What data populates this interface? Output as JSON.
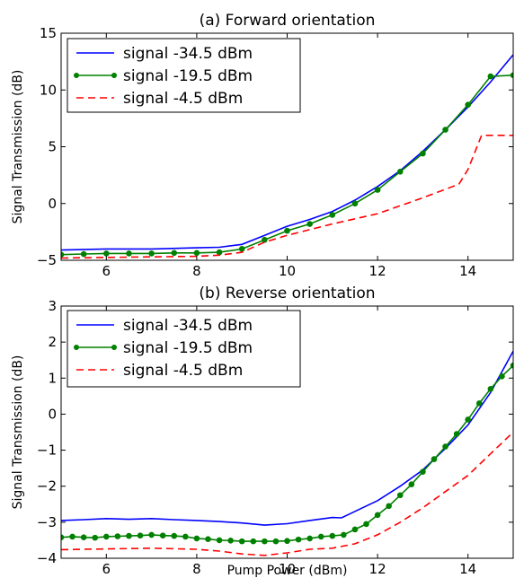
{
  "chart_data": [
    {
      "type": "line",
      "title": "(a) Forward orientation",
      "xlabel": "",
      "ylabel": "Signal Transmission (dB)",
      "xlim": [
        5,
        15
      ],
      "ylim": [
        -5,
        15
      ],
      "xticks": [
        6,
        8,
        10,
        12,
        14
      ],
      "yticks": [
        -5,
        0,
        5,
        10,
        15
      ],
      "legend_placement": "top-left",
      "series": [
        {
          "name": "signal -34.5 dBm",
          "color": "#0000ff",
          "style": "solid",
          "marker": "none",
          "x": [
            5.0,
            6.0,
            7.0,
            8.0,
            8.5,
            9.0,
            9.5,
            10.0,
            10.5,
            11.0,
            11.5,
            12.0,
            12.5,
            13.0,
            13.5,
            14.0,
            14.5,
            15.0
          ],
          "y": [
            -4.1,
            -4.0,
            -4.0,
            -3.9,
            -3.85,
            -3.6,
            -2.8,
            -2.0,
            -1.4,
            -0.7,
            0.3,
            1.5,
            2.9,
            4.6,
            6.5,
            8.5,
            10.7,
            13.1
          ]
        },
        {
          "name": "signal -19.5 dBm",
          "color": "#008000",
          "style": "solid",
          "marker": "circle",
          "x": [
            5.0,
            5.5,
            6.0,
            6.5,
            7.0,
            7.5,
            8.0,
            8.5,
            9.0,
            9.5,
            10.0,
            10.5,
            11.0,
            11.5,
            12.0,
            12.5,
            13.0,
            13.5,
            14.0,
            14.5,
            15.0
          ],
          "y": [
            -4.5,
            -4.45,
            -4.4,
            -4.4,
            -4.4,
            -4.35,
            -4.35,
            -4.3,
            -4.0,
            -3.2,
            -2.4,
            -1.8,
            -1.0,
            0.0,
            1.2,
            2.8,
            4.4,
            6.5,
            8.7,
            11.2,
            11.3
          ]
        },
        {
          "name": "signal -4.5 dBm",
          "color": "#ff0000",
          "style": "dashed",
          "marker": "none",
          "x": [
            5.0,
            6.0,
            7.0,
            8.0,
            8.5,
            9.0,
            9.5,
            10.0,
            11.0,
            12.0,
            13.0,
            13.8,
            14.0,
            14.3,
            15.0
          ],
          "y": [
            -4.8,
            -4.75,
            -4.7,
            -4.65,
            -4.55,
            -4.3,
            -3.4,
            -2.8,
            -1.8,
            -0.9,
            0.5,
            1.7,
            3.0,
            6.0,
            6.0
          ]
        }
      ]
    },
    {
      "type": "line",
      "title": "(b) Reverse orientation",
      "xlabel": "Pump Power (dBm)",
      "ylabel": "Signal Transmission (dB)",
      "xlim": [
        5,
        15
      ],
      "ylim": [
        -4,
        3
      ],
      "xticks": [
        6,
        8,
        10,
        12,
        14
      ],
      "yticks": [
        -4,
        -3,
        -2,
        -1,
        0,
        1,
        2,
        3
      ],
      "legend_placement": "top-left",
      "series": [
        {
          "name": "signal -34.5 dBm",
          "color": "#0000ff",
          "style": "solid",
          "marker": "none",
          "x": [
            5.0,
            5.5,
            6.0,
            6.5,
            7.0,
            7.5,
            8.0,
            8.5,
            9.0,
            9.5,
            10.0,
            10.5,
            11.0,
            11.2,
            11.5,
            12.0,
            12.5,
            13.0,
            13.5,
            14.0,
            14.5,
            15.0
          ],
          "y": [
            -2.95,
            -2.93,
            -2.9,
            -2.92,
            -2.9,
            -2.93,
            -2.95,
            -2.98,
            -3.02,
            -3.08,
            -3.04,
            -2.95,
            -2.87,
            -2.88,
            -2.7,
            -2.4,
            -2.0,
            -1.55,
            -0.95,
            -0.3,
            0.6,
            1.75
          ]
        },
        {
          "name": "signal -19.5 dBm",
          "color": "#008000",
          "style": "solid",
          "marker": "circle",
          "x": [
            5.0,
            5.25,
            5.5,
            5.75,
            6.0,
            6.25,
            6.5,
            6.75,
            7.0,
            7.25,
            7.5,
            7.75,
            8.0,
            8.25,
            8.5,
            8.75,
            9.0,
            9.25,
            9.5,
            9.75,
            10.0,
            10.25,
            10.5,
            10.75,
            11.0,
            11.25,
            11.5,
            11.75,
            12.0,
            12.25,
            12.5,
            12.75,
            13.0,
            13.25,
            13.5,
            13.75,
            14.0,
            14.25,
            14.5,
            14.75,
            15.0
          ],
          "y": [
            -3.42,
            -3.4,
            -3.42,
            -3.43,
            -3.4,
            -3.39,
            -3.38,
            -3.37,
            -3.35,
            -3.37,
            -3.38,
            -3.4,
            -3.45,
            -3.47,
            -3.5,
            -3.51,
            -3.53,
            -3.53,
            -3.53,
            -3.53,
            -3.52,
            -3.48,
            -3.45,
            -3.4,
            -3.38,
            -3.35,
            -3.2,
            -3.05,
            -2.8,
            -2.55,
            -2.25,
            -1.95,
            -1.6,
            -1.25,
            -0.9,
            -0.55,
            -0.15,
            0.3,
            0.7,
            1.05,
            1.35
          ]
        },
        {
          "name": "signal -4.5 dBm",
          "color": "#ff0000",
          "style": "dashed",
          "marker": "none",
          "x": [
            5.0,
            6.0,
            7.0,
            8.0,
            8.5,
            9.0,
            9.5,
            10.0,
            10.5,
            11.0,
            11.5,
            12.0,
            12.5,
            13.0,
            13.5,
            14.0,
            14.5,
            15.0
          ],
          "y": [
            -3.76,
            -3.74,
            -3.72,
            -3.75,
            -3.8,
            -3.88,
            -3.92,
            -3.85,
            -3.75,
            -3.72,
            -3.6,
            -3.35,
            -3.0,
            -2.6,
            -2.15,
            -1.7,
            -1.1,
            -0.5
          ]
        }
      ]
    }
  ]
}
